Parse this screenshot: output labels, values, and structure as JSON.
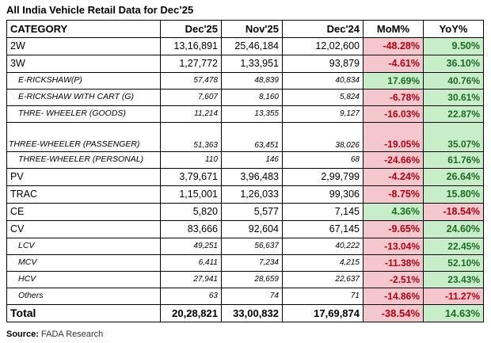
{
  "title": "All India Vehicle Retail Data for Dec’25",
  "columns": [
    "CATEGORY",
    "Dec'25",
    "Nov'25",
    "Dec'24",
    "MoM%",
    "YoY%"
  ],
  "rows": [
    {
      "category": "2W",
      "dec25": "13,16,891",
      "nov25": "25,46,184",
      "dec24": "12,02,600",
      "mom": "-48.28%",
      "yoy": "9.50%"
    },
    {
      "category": "3W",
      "dec25": "1,27,772",
      "nov25": "1,33,951",
      "dec24": "93,879",
      "mom": "-4.61%",
      "yoy": "36.10%"
    },
    {
      "category": "E-RICKSHAW(P)",
      "dec25": "57,478",
      "nov25": "48,839",
      "dec24": "40,834",
      "mom": "17.69%",
      "yoy": "40.76%"
    },
    {
      "category": "E-RICKSHAW WITH CART (G)",
      "dec25": "7,607",
      "nov25": "8,160",
      "dec24": "5,824",
      "mom": "-6.78%",
      "yoy": "30.61%"
    },
    {
      "category": "THRE- WHEELER (GOODS)",
      "dec25": "11,214",
      "nov25": "13,355",
      "dec24": "9,127",
      "mom": "-16.03%",
      "yoy": "22.87%"
    },
    {
      "category": "THREE-WHEELER (PASSENGER)",
      "dec25": "51,363",
      "nov25": "63,451",
      "dec24": "38,026",
      "mom": "-19.05%",
      "yoy": "35.07%"
    },
    {
      "category": "THREE-WHEELER (PERSONAL)",
      "dec25": "110",
      "nov25": "146",
      "dec24": "68",
      "mom": "-24.66%",
      "yoy": "61.76%"
    },
    {
      "category": "PV",
      "dec25": "3,79,671",
      "nov25": "3,96,483",
      "dec24": "2,99,799",
      "mom": "-4.24%",
      "yoy": "26.64%"
    },
    {
      "category": "TRAC",
      "dec25": "1,15,001",
      "nov25": "1,26,033",
      "dec24": "99,306",
      "mom": "-8.75%",
      "yoy": "15.80%"
    },
    {
      "category": "CE",
      "dec25": "5,820",
      "nov25": "5,577",
      "dec24": "7,145",
      "mom": "4.36%",
      "yoy": "-18.54%"
    },
    {
      "category": "CV",
      "dec25": "83,666",
      "nov25": "92,604",
      "dec24": "67,145",
      "mom": "-9.65%",
      "yoy": "24.60%"
    },
    {
      "category": "LCV",
      "dec25": "49,251",
      "nov25": "56,637",
      "dec24": "40,222",
      "mom": "-13.04%",
      "yoy": "22.45%"
    },
    {
      "category": "MCV",
      "dec25": "6,411",
      "nov25": "7,234",
      "dec24": "4,215",
      "mom": "-11.38%",
      "yoy": "52.10%"
    },
    {
      "category": "HCV",
      "dec25": "27,941",
      "nov25": "28,659",
      "dec24": "22,637",
      "mom": "-2.51%",
      "yoy": "23.43%"
    },
    {
      "category": "Others",
      "dec25": "63",
      "nov25": "74",
      "dec24": "71",
      "mom": "-14.86%",
      "yoy": "-11.27%"
    },
    {
      "category": "Total",
      "dec25": "20,28,821",
      "nov25": "33,00,832",
      "dec24": "17,69,874",
      "mom": "-38.54%",
      "yoy": "14.63%"
    }
  ],
  "source": {
    "label": "Source:",
    "text": "FADA Research"
  },
  "colors": {
    "negative_bg": "#f4c7cd",
    "negative_text": "#b00012",
    "positive_bg": "#c7eec9",
    "positive_text": "#1d6b22"
  }
}
